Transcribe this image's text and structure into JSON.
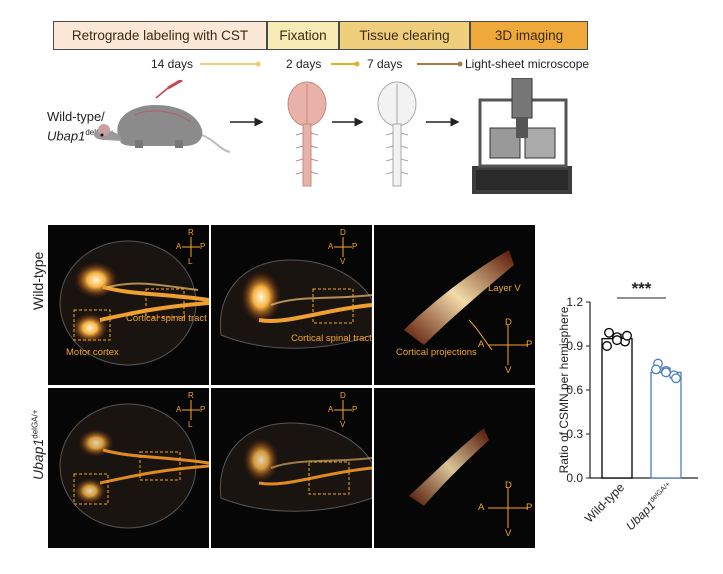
{
  "workflow": {
    "steps": [
      {
        "label": "Retrograde labeling with CST",
        "color": "#fbe8d6"
      },
      {
        "label": "Fixation",
        "color": "#f7ebb4"
      },
      {
        "label": "Tissue clearing",
        "color": "#efcf7c"
      },
      {
        "label": "3D imaging",
        "color": "#efa93a"
      }
    ],
    "durations": [
      "14 days",
      "2 days",
      "7 days",
      "Light-sheet microscope"
    ]
  },
  "mouse_label": {
    "line1": "Wild-type/",
    "gene": "Ubap1",
    "sup": "delGA/+"
  },
  "rows": {
    "wt": "Wild-type",
    "mut_gene": "Ubap1",
    "mut_sup": "delGA/+"
  },
  "annotations": {
    "cortical_spinal_tract_1": "Cortical spinal tract",
    "motor_cortex": "Motor cortex",
    "cortical_spinal_tract_2": "Cortical spinal tract",
    "layer_v": "Layer V",
    "cortical_projections": "Cortical projections"
  },
  "orientation": {
    "dorsal_top": {
      "top": "R",
      "bottom": "L",
      "left": "A",
      "right": "P"
    },
    "side": {
      "top": "D",
      "bottom": "V",
      "left": "A",
      "right": "P"
    }
  },
  "colors": {
    "wt_bar": "#000000",
    "mut_bar": "#4a7fc1",
    "signal": "#f5a623"
  },
  "chart_data": {
    "type": "bar",
    "categories": [
      "Wild-type",
      "Ubap1"
    ],
    "category_sup": [
      "",
      "delGA/+"
    ],
    "values": [
      0.95,
      0.72
    ],
    "points": [
      [
        0.99,
        0.96,
        0.93,
        0.9,
        0.97,
        0.94
      ],
      [
        0.78,
        0.73,
        0.7,
        0.74,
        0.68,
        0.72
      ]
    ],
    "error": [
      0.03,
      0.03
    ],
    "ylabel": "Ratio of CSMN per hemisphere",
    "yticks": [
      "0.0",
      "0.3",
      "0.6",
      "0.9",
      "1.2"
    ],
    "ylim": [
      0,
      1.2
    ],
    "significance": "***"
  }
}
